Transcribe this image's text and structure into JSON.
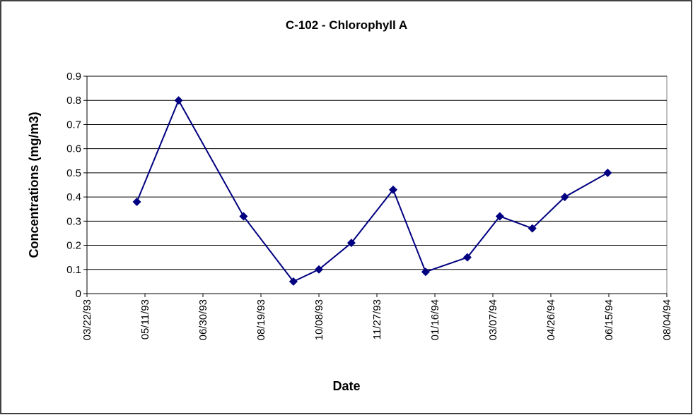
{
  "chart_data": {
    "type": "line",
    "title": "C-102 - Chlorophyll A",
    "xlabel": "Date",
    "ylabel": "Concentrations (mg/m3)",
    "x": [
      "05/04/93",
      "06/09/93",
      "08/04/93",
      "09/16/93",
      "10/08/93",
      "11/05/93",
      "12/11/93",
      "01/08/94",
      "02/13/94",
      "03/13/94",
      "04/10/94",
      "05/08/94",
      "06/14/94"
    ],
    "values": [
      0.38,
      0.8,
      0.32,
      0.05,
      0.1,
      0.21,
      0.43,
      0.09,
      0.15,
      0.32,
      0.27,
      0.4,
      0.5
    ],
    "color": "#000080",
    "xlim": [
      "03/22/93",
      "08/04/94"
    ],
    "xticks": [
      "03/22/93",
      "05/11/93",
      "06/30/93",
      "08/19/93",
      "10/08/93",
      "11/27/93",
      "01/16/94",
      "03/07/94",
      "04/26/94",
      "06/15/94",
      "08/04/94"
    ],
    "ylim": [
      0,
      0.9
    ],
    "yticks": [
      0,
      0.1,
      0.2,
      0.3,
      0.4,
      0.5,
      0.6,
      0.7,
      0.8,
      0.9
    ],
    "grid": true
  }
}
